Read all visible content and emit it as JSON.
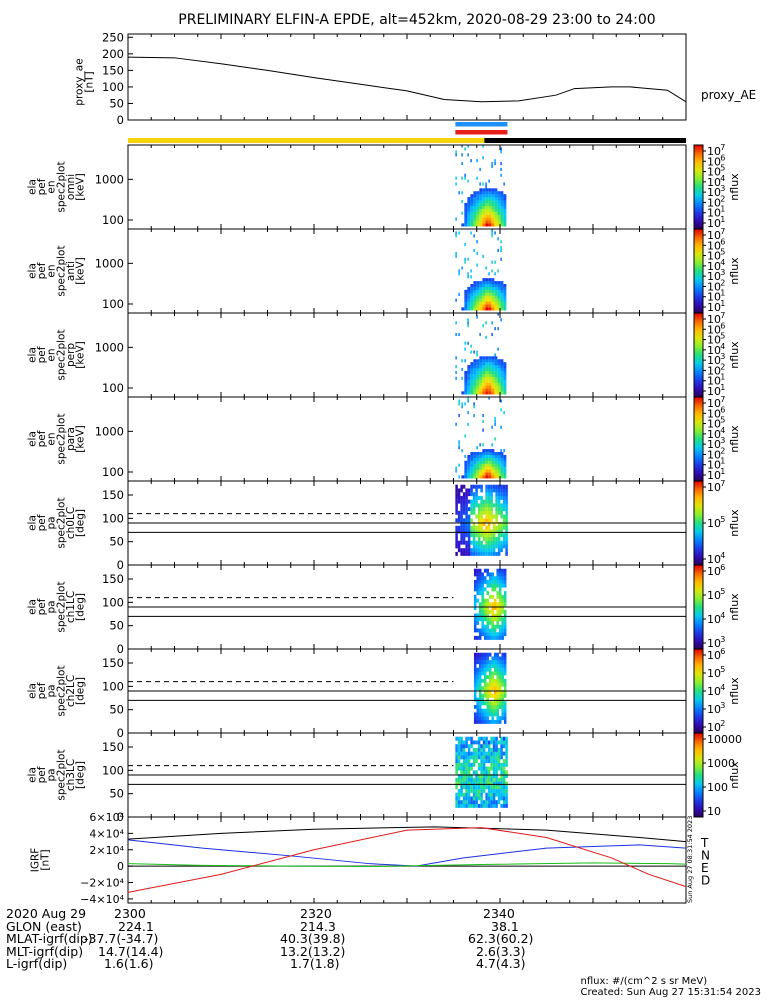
{
  "title": "PRELIMINARY ELFIN-A EPDE, alt=452km, 2020-08-29 23:00 to 24:00",
  "colors": {
    "state_yellow": "#f5d50a",
    "state_black": "#000000",
    "bar_blue": "#1e90ff",
    "bar_red": "#e8201a",
    "comp_T": "#000000",
    "comp_N": "#1a2fe0",
    "comp_E": "#18c018",
    "comp_D": "#e01818"
  },
  "panels": {
    "ae": {
      "ylabel_lines": [
        "proxy_ae",
        "[nT]"
      ],
      "ytick_labels": [
        "250",
        "200",
        "150",
        "100",
        "50",
        "0"
      ],
      "legend": "proxy_AE"
    },
    "spec": [
      {
        "ylabel_lines": [
          "ela",
          "pef",
          "en",
          "spec2plot",
          "omni",
          "[keV]"
        ],
        "ytick_labels": [
          "1000",
          "100"
        ],
        "cb_labels": [
          "10",
          "10",
          "10",
          "10",
          "10",
          "10",
          "10",
          "10"
        ],
        "cb_exps": [
          "7",
          "6",
          "5",
          "4",
          "3",
          "2",
          "1",
          "1"
        ],
        "cb_unit": "nflux"
      },
      {
        "ylabel_lines": [
          "ela",
          "pef",
          "en",
          "spec2plot",
          "anti",
          "[keV]"
        ],
        "ytick_labels": [
          "1000",
          "100"
        ],
        "cb_labels": [
          "10",
          "10",
          "10",
          "10",
          "10",
          "10",
          "10",
          "10"
        ],
        "cb_exps": [
          "7",
          "6",
          "5",
          "4",
          "3",
          "2",
          "1",
          "1"
        ],
        "cb_unit": "nflux"
      },
      {
        "ylabel_lines": [
          "ela",
          "pef",
          "en",
          "spec2plot",
          "perp",
          "[keV]"
        ],
        "ytick_labels": [
          "1000",
          "100"
        ],
        "cb_labels": [
          "10",
          "10",
          "10",
          "10",
          "10",
          "10",
          "10",
          "10"
        ],
        "cb_exps": [
          "7",
          "6",
          "5",
          "4",
          "3",
          "2",
          "1",
          "1"
        ],
        "cb_unit": "nflux"
      },
      {
        "ylabel_lines": [
          "ela",
          "pef",
          "en",
          "spec2plot",
          "para",
          "[keV]"
        ],
        "ytick_labels": [
          "1000",
          "100"
        ],
        "cb_labels": [
          "10",
          "10",
          "10",
          "10",
          "10",
          "10",
          "10",
          "10"
        ],
        "cb_exps": [
          "7",
          "6",
          "5",
          "4",
          "3",
          "2",
          "1",
          "1"
        ],
        "cb_unit": "nflux"
      }
    ],
    "pa": [
      {
        "ylabel_lines": [
          "ela",
          "pef",
          "pa",
          "spec2plot",
          "ch0LC",
          "[deg]"
        ],
        "ytick_labels": [
          "150",
          "100",
          "50",
          "0"
        ],
        "cb_labels": [
          "10",
          "10",
          "10"
        ],
        "cb_exps": [
          "7",
          "5",
          "4"
        ],
        "cb_unit": "nflux"
      },
      {
        "ylabel_lines": [
          "ela",
          "pef",
          "pa",
          "spec2plot",
          "ch1LC",
          "[deg]"
        ],
        "ytick_labels": [
          "150",
          "100",
          "50",
          "0"
        ],
        "cb_labels": [
          "10",
          "10",
          "10",
          "10"
        ],
        "cb_exps": [
          "6",
          "5",
          "4",
          "3"
        ],
        "cb_unit": "nflux"
      },
      {
        "ylabel_lines": [
          "ela",
          "pef",
          "pa",
          "spec2plot",
          "ch2LC",
          "[deg]"
        ],
        "ytick_labels": [
          "150",
          "100",
          "50",
          "0"
        ],
        "cb_labels": [
          "10",
          "10",
          "10",
          "10",
          "10"
        ],
        "cb_exps": [
          "6",
          "5",
          "4",
          "3",
          "2"
        ],
        "cb_unit": "nflux"
      },
      {
        "ylabel_lines": [
          "ela",
          "pef",
          "pa",
          "spec2plot",
          "ch3LC",
          "[deg]"
        ],
        "ytick_labels": [
          "150",
          "100",
          "50",
          "0"
        ],
        "cb_labels": [
          "10000",
          "1000",
          "100",
          "10"
        ],
        "cb_exps": [],
        "cb_unit": "nflux"
      }
    ],
    "igrf": {
      "ylabel_lines": [
        "IGRF",
        "[nT]"
      ],
      "ytick_labels": [
        "6×10⁴",
        "4×10⁴",
        "2×10⁴",
        "0",
        "−2×10⁴",
        "−4×10⁴"
      ],
      "legend": [
        "T",
        "N",
        "E",
        "D"
      ],
      "side_note": "Sun Aug 27 08:31:54 2023"
    }
  },
  "footer": {
    "rows": [
      {
        "label": "2020 Aug 29",
        "v1": "2300",
        "v2": "2320",
        "v3": "2340"
      },
      {
        "label": "GLON (east)",
        "v1": "224.1",
        "v2": "214.3",
        "v3": "38.1"
      },
      {
        "label": "MLAT-igrf(dip)",
        "v1": "-37.7(-34.7)",
        "v2": "40.3(39.8)",
        "v3": "62.3(60.2)"
      },
      {
        "label": "MLT-igrf(dip)",
        "v1": "14.7(14.4)",
        "v2": "13.2(13.2)",
        "v3": "2.6(3.3)"
      },
      {
        "label": "L-igrf(dip)",
        "v1": "1.6(1.6)",
        "v2": "1.7(1.8)",
        "v3": "4.7(4.3)"
      }
    ],
    "units_note": "nflux: #/(cm^2 s sr MeV)",
    "created": "Created: Sun Aug 27 15:31:54 2023"
  },
  "chart_data": [
    {
      "type": "line",
      "title": "PRELIMINARY ELFIN-A EPDE, alt=452km, 2020-08-29 23:00 to 24:00",
      "ylabel": "proxy_ae [nT]",
      "ylim": [
        0,
        260
      ],
      "series": [
        {
          "name": "proxy_AE",
          "x_min": [
            0,
            5,
            10,
            15,
            20,
            25,
            30,
            34,
            38,
            42,
            46,
            48,
            52,
            54,
            58,
            60
          ],
          "values": [
            190,
            188,
            170,
            150,
            128,
            108,
            88,
            62,
            55,
            58,
            75,
            95,
            100,
            100,
            90,
            55
          ]
        }
      ]
    },
    {
      "type": "heatmap",
      "ylabel": "energy [keV]",
      "yscale": "log",
      "ylim": [
        60,
        7000
      ],
      "active_interval_min": [
        35.2,
        40.8
      ],
      "panels": [
        "omni",
        "anti",
        "perp",
        "para"
      ]
    },
    {
      "type": "heatmap",
      "ylabel": "pitch angle [deg]",
      "ylim": [
        0,
        180
      ],
      "reference_lines_deg": [
        110,
        90,
        70
      ],
      "active_interval_min": [
        35.2,
        40.8
      ],
      "panels": [
        "ch0LC",
        "ch1LC",
        "ch2LC",
        "ch3LC"
      ]
    },
    {
      "type": "line",
      "ylabel": "IGRF [nT]",
      "ylim": [
        -45000,
        60000
      ],
      "series": [
        {
          "name": "T",
          "x_min": [
            0,
            10,
            20,
            33,
            45,
            55,
            60
          ],
          "values": [
            33000,
            40000,
            45000,
            48000,
            44000,
            35000,
            30000
          ]
        },
        {
          "name": "N",
          "x_min": [
            0,
            8,
            18,
            26,
            31,
            36,
            45,
            55,
            60
          ],
          "values": [
            32000,
            22000,
            12000,
            3000,
            0,
            10000,
            22000,
            26000,
            22000
          ]
        },
        {
          "name": "E",
          "x_min": [
            0,
            8,
            18,
            26,
            38,
            50,
            58,
            60
          ],
          "values": [
            3000,
            1000,
            0,
            -500,
            2000,
            4000,
            3000,
            2500
          ]
        },
        {
          "name": "D",
          "x_min": [
            0,
            10,
            20,
            30,
            38,
            45,
            52,
            56,
            60
          ],
          "values": [
            -32000,
            -10000,
            20000,
            44000,
            47000,
            35000,
            10000,
            -10000,
            -25000
          ]
        }
      ]
    }
  ]
}
